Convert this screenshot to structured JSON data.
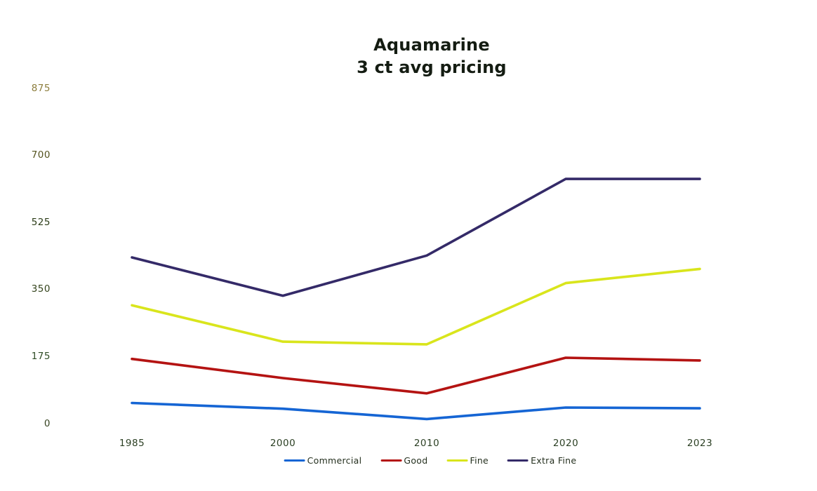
{
  "title": {
    "line1": "Aquamarine",
    "line2": "3 ct avg pricing"
  },
  "chart_data": {
    "type": "line",
    "title": "Aquamarine 3 ct avg pricing",
    "categories": [
      "1985",
      "2000",
      "2010",
      "2020",
      "2023"
    ],
    "series": [
      {
        "name": "Commercial",
        "color": "#1565d4",
        "values": [
          55,
          40,
          13,
          43,
          41
        ]
      },
      {
        "name": "Good",
        "color": "#b41312",
        "values": [
          170,
          120,
          80,
          173,
          166
        ]
      },
      {
        "name": "Fine",
        "color": "#d9e51c",
        "values": [
          310,
          215,
          208,
          368,
          405
        ]
      },
      {
        "name": "Extra Fine",
        "color": "#342a68",
        "values": [
          435,
          335,
          440,
          640,
          640
        ]
      }
    ],
    "xlabel": "",
    "ylabel": "",
    "ylim": [
      0,
      875
    ],
    "yticks": [
      875,
      700,
      525,
      350,
      175,
      0
    ],
    "ytick_colors": [
      "#8c7d3c",
      "#55531f",
      "#2b3c17",
      "#33431b",
      "#2f4c25",
      "#374422"
    ],
    "xtick_color": "#2c4024",
    "grid": false,
    "legend_position": "bottom"
  }
}
